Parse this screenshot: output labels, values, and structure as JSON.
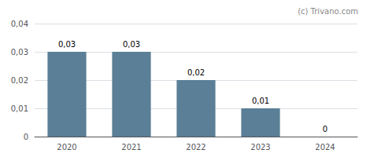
{
  "chart_data": {
    "type": "bar",
    "categories": [
      "2020",
      "2021",
      "2022",
      "2023",
      "2024"
    ],
    "values": [
      0.03,
      0.03,
      0.02,
      0.01,
      0
    ],
    "value_labels": [
      "0,03",
      "0,03",
      "0,02",
      "0,01",
      "0"
    ],
    "data_labels": true,
    "color": "#5a7f96",
    "ylim": [
      0,
      0.04
    ],
    "yticks": [
      0,
      {
        "value": 0.01,
        "label": "0,01"
      },
      {
        "value": 0.02,
        "label": "0,02"
      },
      {
        "value": 0.03,
        "label": "0,03"
      },
      {
        "value": 0.04,
        "label": "0,04"
      }
    ],
    "grid": true,
    "annotations": [
      "(c) Trivano.com"
    ]
  }
}
